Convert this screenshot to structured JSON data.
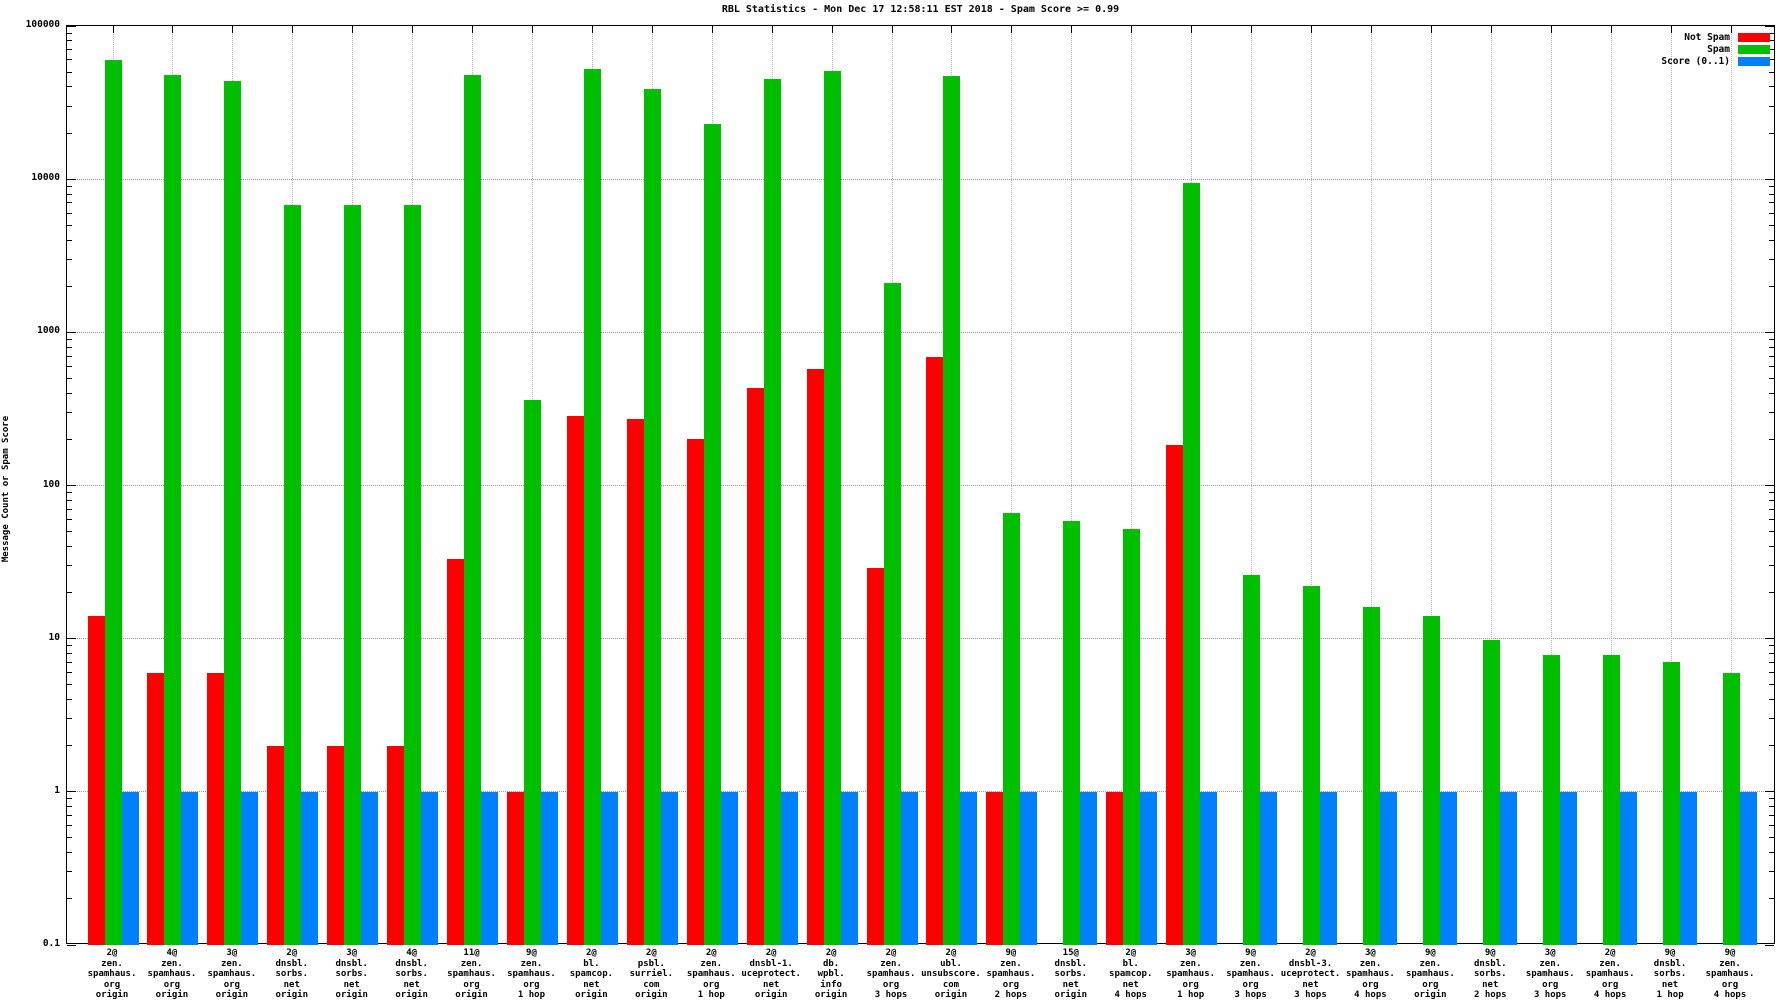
{
  "chart_data": {
    "type": "bar",
    "title": "RBL Statistics - Mon Dec 17 12:58:11 EST 2018 - Spam Score >= 0.99",
    "ylabel": "Message Count or Spam Score",
    "yscale": "log",
    "ylim": [
      0.1,
      100000
    ],
    "ytick_labels": [
      "100000",
      "10000",
      "1000",
      "100",
      "10",
      "1",
      "0.1"
    ],
    "grid": true,
    "legend_position": "top-right-inside",
    "colors": {
      "not_spam": "#ff0000",
      "spam": "#00bf00",
      "score": "#0080ff",
      "grid": "#9a9a9a",
      "border": "#000000",
      "background": "#ffffff"
    },
    "legend": [
      {
        "label": "Not Spam",
        "color": "#ff0000"
      },
      {
        "label": "Spam",
        "color": "#00bf00"
      },
      {
        "label": "Score (0..1)",
        "color": "#0080ff"
      }
    ],
    "categories": [
      [
        "2@",
        "zen.",
        "spamhaus.",
        "org",
        "origin"
      ],
      [
        "4@",
        "zen.",
        "spamhaus.",
        "org",
        "origin"
      ],
      [
        "3@",
        "zen.",
        "spamhaus.",
        "org",
        "origin"
      ],
      [
        "2@",
        "dnsbl.",
        "sorbs.",
        "net",
        "origin"
      ],
      [
        "3@",
        "dnsbl.",
        "sorbs.",
        "net",
        "origin"
      ],
      [
        "4@",
        "dnsbl.",
        "sorbs.",
        "net",
        "origin"
      ],
      [
        "11@",
        "zen.",
        "spamhaus.",
        "org",
        "origin"
      ],
      [
        "9@",
        "zen.",
        "spamhaus.",
        "org",
        "1 hop"
      ],
      [
        "2@",
        "bl.",
        "spamcop.",
        "net",
        "origin"
      ],
      [
        "2@",
        "psbl.",
        "surriel.",
        "com",
        "origin"
      ],
      [
        "2@",
        "zen.",
        "spamhaus.",
        "org",
        "1 hop"
      ],
      [
        "2@",
        "dnsbl-1.",
        "uceprotect.",
        "net",
        "origin"
      ],
      [
        "2@",
        "db.",
        "wpbl.",
        "info",
        "origin"
      ],
      [
        "2@",
        "zen.",
        "spamhaus.",
        "org",
        "3 hops"
      ],
      [
        "2@",
        "ubl.",
        "unsubscore.",
        "com",
        "origin"
      ],
      [
        "9@",
        "zen.",
        "spamhaus.",
        "org",
        "2 hops"
      ],
      [
        "15@",
        "dnsbl.",
        "sorbs.",
        "net",
        "origin"
      ],
      [
        "2@",
        "bl.",
        "spamcop.",
        "net",
        "4 hops"
      ],
      [
        "3@",
        "zen.",
        "spamhaus.",
        "org",
        "1 hop"
      ],
      [
        "9@",
        "zen.",
        "spamhaus.",
        "org",
        "3 hops"
      ],
      [
        "2@",
        "dnsbl-3.",
        "uceprotect.",
        "net",
        "3 hops"
      ],
      [
        "3@",
        "zen.",
        "spamhaus.",
        "org",
        "4 hops"
      ],
      [
        "9@",
        "zen.",
        "spamhaus.",
        "org",
        "origin"
      ],
      [
        "9@",
        "dnsbl.",
        "sorbs.",
        "net",
        "2 hops"
      ],
      [
        "3@",
        "zen.",
        "spamhaus.",
        "org",
        "3 hops"
      ],
      [
        "2@",
        "zen.",
        "spamhaus.",
        "org",
        "4 hops"
      ],
      [
        "9@",
        "dnsbl.",
        "sorbs.",
        "net",
        "1 hop"
      ],
      [
        "9@",
        "zen.",
        "spamhaus.",
        "org",
        "4 hops"
      ]
    ],
    "series": [
      {
        "name": "Not Spam",
        "color": "#ff0000",
        "values": [
          14,
          6,
          6,
          2,
          2,
          2,
          33,
          1,
          285,
          270,
          200,
          430,
          580,
          29,
          690,
          1,
          0,
          1,
          183,
          0,
          0,
          0,
          0,
          0,
          0,
          0,
          0,
          0
        ]
      },
      {
        "name": "Spam",
        "color": "#00bf00",
        "values": [
          60000,
          48000,
          44000,
          6800,
          6800,
          6800,
          48000,
          360,
          52000,
          39000,
          23000,
          45000,
          51000,
          2100,
          47000,
          66,
          59,
          52,
          9500,
          26,
          22,
          16,
          14,
          9.8,
          7.8,
          7.8,
          7,
          6
        ]
      },
      {
        "name": "Score (0..1)",
        "color": "#0080ff",
        "values": [
          1,
          1,
          1,
          1,
          1,
          1,
          1,
          1,
          1,
          1,
          1,
          1,
          1,
          1,
          1,
          1,
          1,
          1,
          1,
          1,
          1,
          1,
          1,
          1,
          1,
          1,
          1,
          1
        ]
      }
    ]
  }
}
